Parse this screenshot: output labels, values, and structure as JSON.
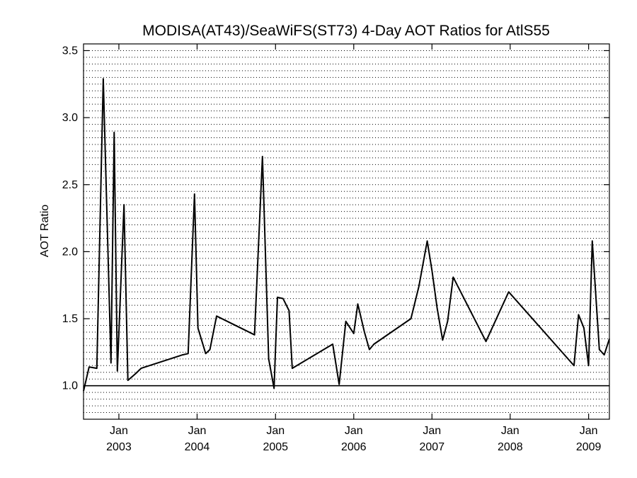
{
  "chart_data": {
    "type": "line",
    "title": "MODISA(AT43)/SeaWiFS(ST73) 4-Day AOT Ratios for AtlS55",
    "xlabel": "",
    "ylabel": "AOT Ratio",
    "ylim": [
      0.75,
      3.55
    ],
    "xlim": [
      "2002-07-20",
      "2009-04-08"
    ],
    "grid": "horizontal dotted",
    "y_ticks": [
      "1.0",
      "1.5",
      "2.0",
      "2.5",
      "3.0",
      "3.5"
    ],
    "x_ticks": [
      {
        "month": "Jan",
        "year": "2003"
      },
      {
        "month": "Jan",
        "year": "2004"
      },
      {
        "month": "Jan",
        "year": "2005"
      },
      {
        "month": "Jan",
        "year": "2006"
      },
      {
        "month": "Jan",
        "year": "2007"
      },
      {
        "month": "Jan",
        "year": "2008"
      },
      {
        "month": "Jan",
        "year": "2009"
      }
    ],
    "reference_line": 1.0,
    "series": [
      {
        "color": "#000000",
        "x": [
          "2002-07-20",
          "2002-08-15",
          "2002-09-20",
          "2002-10-20",
          "2002-11-25",
          "2002-12-10",
          "2002-12-25",
          "2003-01-25",
          "2003-02-12",
          "2003-03-20",
          "2003-04-15",
          "2003-10-25",
          "2003-11-20",
          "2003-12-20",
          "2004-01-05",
          "2004-02-10",
          "2004-03-01",
          "2004-04-01",
          "2004-09-25",
          "2004-11-01",
          "2004-11-30",
          "2004-12-25",
          "2005-01-10",
          "2005-02-05",
          "2005-03-05",
          "2005-03-20",
          "2005-09-25",
          "2005-10-25",
          "2005-11-25",
          "2006-01-01",
          "2006-01-20",
          "2006-02-20",
          "2006-03-15",
          "2006-04-05",
          "2006-09-25",
          "2006-11-01",
          "2006-12-10",
          "2007-01-01",
          "2007-01-25",
          "2007-02-20",
          "2007-03-15",
          "2007-04-10",
          "2007-09-10",
          "2007-12-25",
          "2008-10-25",
          "2008-11-15",
          "2008-12-10",
          "2009-01-01",
          "2009-01-18",
          "2009-02-20",
          "2009-03-15",
          "2009-04-08"
        ],
        "y": [
          0.96,
          1.14,
          1.13,
          3.29,
          1.17,
          2.89,
          1.11,
          2.35,
          1.04,
          1.09,
          1.13,
          1.23,
          1.24,
          2.43,
          1.43,
          1.24,
          1.27,
          1.52,
          1.38,
          2.71,
          1.2,
          0.98,
          1.66,
          1.65,
          1.56,
          1.13,
          1.31,
          1.01,
          1.48,
          1.39,
          1.61,
          1.4,
          1.27,
          1.31,
          1.5,
          1.74,
          2.08,
          1.86,
          1.58,
          1.34,
          1.48,
          1.81,
          1.33,
          1.7,
          1.15,
          1.53,
          1.43,
          1.15,
          2.08,
          1.27,
          1.23,
          1.35
        ]
      }
    ]
  }
}
